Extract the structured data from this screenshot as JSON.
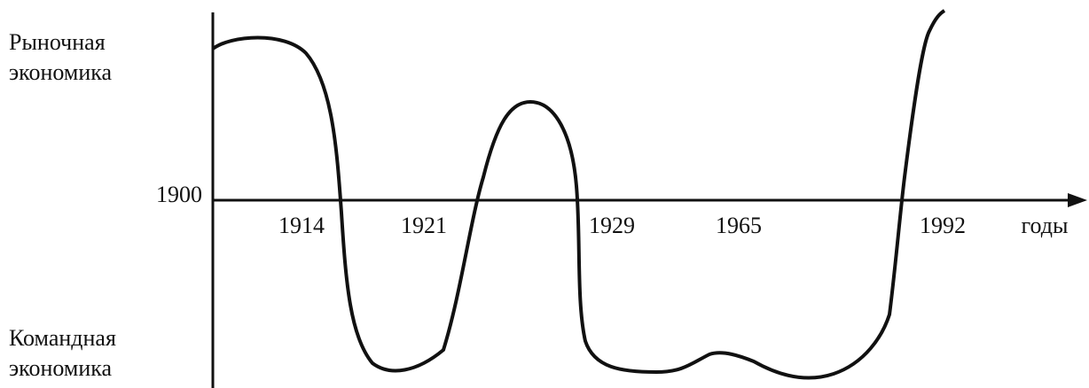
{
  "top_label": [
    "Рыночная",
    "экономика"
  ],
  "bottom_label": [
    "Командная",
    "экономика"
  ],
  "origin_label": "1900",
  "x_labels": [
    "1914",
    "1921",
    "1929",
    "1965",
    "1992"
  ],
  "x_axis_label": "годы"
}
